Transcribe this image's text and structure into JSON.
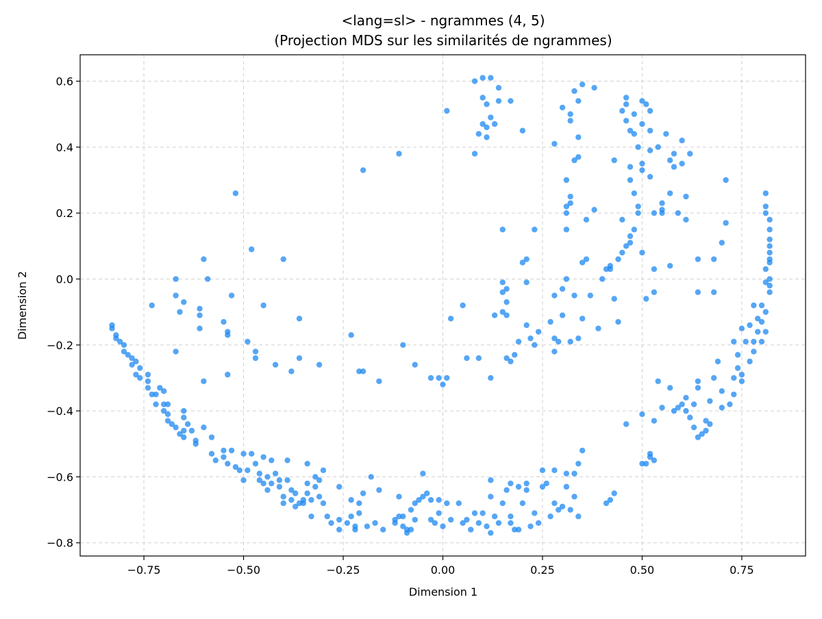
{
  "chart_data": {
    "type": "scatter",
    "title": "<lang=sl> - ngrammes (4, 5)",
    "subtitle": "(Projection MDS sur les similarités de ngrammes)",
    "xlabel": "Dimension 1",
    "ylabel": "Dimension 2",
    "xlim": [
      -0.91,
      0.91
    ],
    "ylim": [
      -0.84,
      0.68
    ],
    "xticks": [
      -0.75,
      -0.5,
      -0.25,
      0.0,
      0.25,
      0.5,
      0.75
    ],
    "xtick_labels": [
      "−0.75",
      "−0.50",
      "−0.25",
      "0.00",
      "0.25",
      "0.50",
      "0.75"
    ],
    "yticks": [
      -0.8,
      -0.6,
      -0.4,
      -0.2,
      0.0,
      0.2,
      0.4,
      0.6
    ],
    "ytick_labels": [
      "−0.8",
      "−0.6",
      "−0.4",
      "−0.2",
      "0.0",
      "0.2",
      "0.4",
      "0.6"
    ],
    "grid": true,
    "marker_color": "#1e88f0",
    "points": [
      [
        -0.83,
        -0.14
      ],
      [
        -0.83,
        -0.15
      ],
      [
        -0.82,
        -0.17
      ],
      [
        -0.82,
        -0.18
      ],
      [
        -0.81,
        -0.19
      ],
      [
        -0.8,
        -0.2
      ],
      [
        -0.8,
        -0.22
      ],
      [
        -0.79,
        -0.23
      ],
      [
        -0.78,
        -0.24
      ],
      [
        -0.78,
        -0.26
      ],
      [
        -0.77,
        -0.25
      ],
      [
        -0.76,
        -0.27
      ],
      [
        -0.77,
        -0.29
      ],
      [
        -0.76,
        -0.3
      ],
      [
        -0.74,
        -0.29
      ],
      [
        -0.74,
        -0.31
      ],
      [
        -0.74,
        -0.33
      ],
      [
        -0.73,
        -0.35
      ],
      [
        -0.72,
        -0.35
      ],
      [
        -0.72,
        -0.38
      ],
      [
        -0.71,
        -0.33
      ],
      [
        -0.7,
        -0.34
      ],
      [
        -0.7,
        -0.38
      ],
      [
        -0.7,
        -0.4
      ],
      [
        -0.69,
        -0.38
      ],
      [
        -0.69,
        -0.41
      ],
      [
        -0.69,
        -0.43
      ],
      [
        -0.68,
        -0.44
      ],
      [
        -0.67,
        -0.45
      ],
      [
        -0.66,
        -0.47
      ],
      [
        -0.65,
        -0.4
      ],
      [
        -0.65,
        -0.42
      ],
      [
        -0.65,
        -0.46
      ],
      [
        -0.65,
        -0.48
      ],
      [
        -0.64,
        -0.44
      ],
      [
        -0.63,
        -0.46
      ],
      [
        -0.62,
        -0.49
      ],
      [
        -0.62,
        -0.5
      ],
      [
        -0.6,
        -0.45
      ],
      [
        -0.58,
        -0.48
      ],
      [
        -0.58,
        -0.53
      ],
      [
        -0.57,
        -0.55
      ],
      [
        -0.55,
        -0.52
      ],
      [
        -0.55,
        -0.54
      ],
      [
        -0.54,
        -0.56
      ],
      [
        -0.53,
        -0.52
      ],
      [
        -0.52,
        -0.57
      ],
      [
        -0.51,
        -0.58
      ],
      [
        -0.5,
        -0.53
      ],
      [
        -0.5,
        -0.61
      ],
      [
        -0.49,
        -0.58
      ],
      [
        -0.48,
        -0.53
      ],
      [
        -0.47,
        -0.56
      ],
      [
        -0.46,
        -0.59
      ],
      [
        -0.46,
        -0.61
      ],
      [
        -0.45,
        -0.54
      ],
      [
        -0.45,
        -0.62
      ],
      [
        -0.44,
        -0.6
      ],
      [
        -0.44,
        -0.64
      ],
      [
        -0.43,
        -0.55
      ],
      [
        -0.43,
        -0.62
      ],
      [
        -0.42,
        -0.59
      ],
      [
        -0.41,
        -0.61
      ],
      [
        -0.41,
        -0.63
      ],
      [
        -0.4,
        -0.66
      ],
      [
        -0.4,
        -0.68
      ],
      [
        -0.39,
        -0.55
      ],
      [
        -0.39,
        -0.61
      ],
      [
        -0.38,
        -0.64
      ],
      [
        -0.38,
        -0.67
      ],
      [
        -0.37,
        -0.65
      ],
      [
        -0.37,
        -0.69
      ],
      [
        -0.36,
        -0.68
      ],
      [
        -0.35,
        -0.67
      ],
      [
        -0.35,
        -0.68
      ],
      [
        -0.34,
        -0.56
      ],
      [
        -0.34,
        -0.62
      ],
      [
        -0.34,
        -0.65
      ],
      [
        -0.33,
        -0.67
      ],
      [
        -0.33,
        -0.72
      ],
      [
        -0.32,
        -0.6
      ],
      [
        -0.32,
        -0.63
      ],
      [
        -0.31,
        -0.61
      ],
      [
        -0.31,
        -0.66
      ],
      [
        -0.3,
        -0.58
      ],
      [
        -0.3,
        -0.68
      ],
      [
        -0.29,
        -0.72
      ],
      [
        -0.28,
        -0.74
      ],
      [
        -0.26,
        -0.63
      ],
      [
        -0.26,
        -0.73
      ],
      [
        -0.26,
        -0.76
      ],
      [
        -0.24,
        -0.74
      ],
      [
        -0.23,
        -0.67
      ],
      [
        -0.23,
        -0.72
      ],
      [
        -0.22,
        -0.75
      ],
      [
        -0.22,
        -0.76
      ],
      [
        -0.21,
        -0.71
      ],
      [
        -0.21,
        -0.68
      ],
      [
        -0.2,
        -0.65
      ],
      [
        -0.19,
        -0.75
      ],
      [
        -0.18,
        -0.6
      ],
      [
        -0.17,
        -0.74
      ],
      [
        -0.16,
        -0.64
      ],
      [
        -0.15,
        -0.76
      ],
      [
        -0.12,
        -0.73
      ],
      [
        -0.12,
        -0.74
      ],
      [
        -0.11,
        -0.66
      ],
      [
        -0.11,
        -0.72
      ],
      [
        -0.1,
        -0.72
      ],
      [
        -0.1,
        -0.75
      ],
      [
        -0.09,
        -0.76
      ],
      [
        -0.09,
        -0.77
      ],
      [
        -0.08,
        -0.76
      ],
      [
        -0.08,
        -0.7
      ],
      [
        -0.07,
        -0.68
      ],
      [
        -0.07,
        -0.73
      ],
      [
        -0.06,
        -0.67
      ],
      [
        -0.05,
        -0.59
      ],
      [
        -0.05,
        -0.66
      ],
      [
        -0.04,
        -0.65
      ],
      [
        -0.03,
        -0.67
      ],
      [
        -0.03,
        -0.73
      ],
      [
        -0.02,
        -0.74
      ],
      [
        -0.01,
        -0.71
      ],
      [
        -0.01,
        -0.67
      ],
      [
        0.0,
        -0.75
      ],
      [
        0.01,
        -0.68
      ],
      [
        0.02,
        -0.73
      ],
      [
        0.04,
        -0.68
      ],
      [
        0.05,
        -0.74
      ],
      [
        0.06,
        -0.73
      ],
      [
        0.07,
        -0.76
      ],
      [
        0.08,
        -0.71
      ],
      [
        0.09,
        -0.74
      ],
      [
        0.1,
        -0.71
      ],
      [
        0.11,
        -0.75
      ],
      [
        0.12,
        -0.61
      ],
      [
        0.12,
        -0.66
      ],
      [
        0.12,
        -0.77
      ],
      [
        0.13,
        -0.72
      ],
      [
        0.14,
        -0.74
      ],
      [
        0.15,
        -0.68
      ],
      [
        0.16,
        -0.64
      ],
      [
        0.17,
        -0.62
      ],
      [
        0.17,
        -0.72
      ],
      [
        0.17,
        -0.74
      ],
      [
        0.18,
        -0.76
      ],
      [
        0.19,
        -0.63
      ],
      [
        0.19,
        -0.76
      ],
      [
        0.2,
        -0.68
      ],
      [
        0.21,
        -0.62
      ],
      [
        0.21,
        -0.64
      ],
      [
        0.22,
        -0.75
      ],
      [
        0.23,
        -0.71
      ],
      [
        0.24,
        -0.74
      ],
      [
        0.25,
        -0.63
      ],
      [
        0.25,
        -0.58
      ],
      [
        0.26,
        -0.62
      ],
      [
        0.27,
        -0.72
      ],
      [
        0.28,
        -0.68
      ],
      [
        0.28,
        -0.58
      ],
      [
        0.29,
        -0.7
      ],
      [
        0.3,
        -0.69
      ],
      [
        0.31,
        -0.59
      ],
      [
        0.31,
        -0.63
      ],
      [
        0.32,
        -0.7
      ],
      [
        0.33,
        -0.59
      ],
      [
        0.33,
        -0.66
      ],
      [
        0.34,
        -0.56
      ],
      [
        0.34,
        -0.72
      ],
      [
        0.35,
        -0.52
      ],
      [
        0.41,
        -0.68
      ],
      [
        0.42,
        -0.67
      ],
      [
        0.43,
        -0.65
      ],
      [
        0.46,
        -0.44
      ],
      [
        0.5,
        -0.41
      ],
      [
        0.5,
        -0.56
      ],
      [
        0.51,
        -0.56
      ],
      [
        0.52,
        -0.53
      ],
      [
        0.52,
        -0.54
      ],
      [
        0.53,
        -0.55
      ],
      [
        0.53,
        -0.43
      ],
      [
        0.54,
        -0.31
      ],
      [
        0.55,
        -0.39
      ],
      [
        0.57,
        -0.33
      ],
      [
        0.58,
        -0.4
      ],
      [
        0.59,
        -0.39
      ],
      [
        0.6,
        -0.38
      ],
      [
        0.61,
        -0.36
      ],
      [
        0.61,
        -0.4
      ],
      [
        0.62,
        -0.42
      ],
      [
        0.63,
        -0.38
      ],
      [
        0.63,
        -0.45
      ],
      [
        0.64,
        -0.48
      ],
      [
        0.64,
        -0.33
      ],
      [
        0.64,
        -0.31
      ],
      [
        0.65,
        -0.47
      ],
      [
        0.66,
        -0.43
      ],
      [
        0.66,
        -0.46
      ],
      [
        0.67,
        -0.37
      ],
      [
        0.67,
        -0.44
      ],
      [
        0.68,
        -0.3
      ],
      [
        0.69,
        -0.25
      ],
      [
        0.7,
        -0.34
      ],
      [
        0.7,
        -0.39
      ],
      [
        0.72,
        -0.38
      ],
      [
        0.73,
        -0.35
      ],
      [
        0.73,
        -0.3
      ],
      [
        0.73,
        -0.19
      ],
      [
        0.74,
        -0.27
      ],
      [
        0.74,
        -0.23
      ],
      [
        0.75,
        -0.31
      ],
      [
        0.75,
        -0.29
      ],
      [
        0.75,
        -0.15
      ],
      [
        0.76,
        -0.19
      ],
      [
        0.77,
        -0.14
      ],
      [
        0.77,
        -0.25
      ],
      [
        0.78,
        -0.22
      ],
      [
        0.78,
        -0.19
      ],
      [
        0.78,
        -0.08
      ],
      [
        0.79,
        -0.16
      ],
      [
        0.79,
        -0.12
      ],
      [
        0.8,
        -0.19
      ],
      [
        0.8,
        -0.08
      ],
      [
        0.8,
        -0.13
      ],
      [
        0.81,
        -0.16
      ],
      [
        0.81,
        -0.1
      ],
      [
        0.81,
        -0.01
      ],
      [
        0.82,
        -0.04
      ],
      [
        0.82,
        -0.02
      ],
      [
        0.82,
        0.0
      ],
      [
        0.82,
        0.05
      ],
      [
        0.82,
        0.08
      ],
      [
        0.82,
        0.12
      ],
      [
        0.82,
        0.15
      ],
      [
        0.82,
        0.18
      ],
      [
        0.81,
        0.2
      ],
      [
        0.81,
        0.22
      ],
      [
        0.81,
        0.26
      ],
      [
        0.82,
        0.1
      ],
      [
        0.82,
        0.06
      ],
      [
        0.81,
        0.03
      ],
      [
        -0.6,
        -0.31
      ],
      [
        -0.61,
        -0.15
      ],
      [
        -0.61,
        -0.09
      ],
      [
        -0.61,
        -0.11
      ],
      [
        -0.6,
        0.06
      ],
      [
        -0.59,
        0.0
      ],
      [
        -0.67,
        0.0
      ],
      [
        -0.65,
        -0.07
      ],
      [
        -0.66,
        -0.1
      ],
      [
        -0.67,
        -0.05
      ],
      [
        -0.67,
        -0.22
      ],
      [
        -0.73,
        -0.08
      ],
      [
        -0.55,
        -0.13
      ],
      [
        -0.54,
        -0.17
      ],
      [
        -0.54,
        -0.16
      ],
      [
        -0.54,
        -0.29
      ],
      [
        -0.53,
        -0.05
      ],
      [
        -0.52,
        0.26
      ],
      [
        -0.49,
        -0.19
      ],
      [
        -0.48,
        0.09
      ],
      [
        -0.47,
        -0.22
      ],
      [
        -0.47,
        -0.24
      ],
      [
        -0.45,
        -0.08
      ],
      [
        -0.42,
        -0.26
      ],
      [
        -0.4,
        0.06
      ],
      [
        -0.38,
        -0.28
      ],
      [
        -0.36,
        -0.24
      ],
      [
        -0.36,
        -0.12
      ],
      [
        -0.31,
        -0.26
      ],
      [
        -0.23,
        -0.17
      ],
      [
        -0.21,
        -0.28
      ],
      [
        -0.2,
        -0.28
      ],
      [
        -0.2,
        0.33
      ],
      [
        -0.16,
        -0.31
      ],
      [
        -0.11,
        0.38
      ],
      [
        -0.1,
        -0.2
      ],
      [
        -0.07,
        -0.26
      ],
      [
        -0.03,
        -0.3
      ],
      [
        -0.01,
        -0.3
      ],
      [
        0.0,
        -0.32
      ],
      [
        0.01,
        -0.3
      ],
      [
        0.01,
        0.51
      ],
      [
        0.02,
        -0.12
      ],
      [
        0.05,
        -0.08
      ],
      [
        0.06,
        -0.24
      ],
      [
        0.08,
        0.38
      ],
      [
        0.09,
        -0.24
      ],
      [
        0.08,
        0.6
      ],
      [
        0.09,
        0.44
      ],
      [
        0.1,
        0.47
      ],
      [
        0.1,
        0.55
      ],
      [
        0.1,
        0.61
      ],
      [
        0.11,
        0.53
      ],
      [
        0.11,
        0.43
      ],
      [
        0.11,
        0.46
      ],
      [
        0.12,
        -0.3
      ],
      [
        0.12,
        0.49
      ],
      [
        0.12,
        0.61
      ],
      [
        0.13,
        -0.11
      ],
      [
        0.13,
        0.47
      ],
      [
        0.14,
        0.54
      ],
      [
        0.14,
        0.58
      ],
      [
        0.15,
        -0.01
      ],
      [
        0.15,
        -0.04
      ],
      [
        0.15,
        -0.1
      ],
      [
        0.15,
        0.15
      ],
      [
        0.16,
        -0.24
      ],
      [
        0.16,
        -0.07
      ],
      [
        0.16,
        -0.11
      ],
      [
        0.16,
        -0.03
      ],
      [
        0.17,
        -0.25
      ],
      [
        0.17,
        0.54
      ],
      [
        0.18,
        -0.23
      ],
      [
        0.19,
        -0.19
      ],
      [
        0.2,
        0.05
      ],
      [
        0.2,
        0.45
      ],
      [
        0.21,
        -0.14
      ],
      [
        0.21,
        0.06
      ],
      [
        0.21,
        -0.01
      ],
      [
        0.22,
        -0.18
      ],
      [
        0.23,
        -0.2
      ],
      [
        0.23,
        0.15
      ],
      [
        0.24,
        -0.16
      ],
      [
        0.27,
        -0.13
      ],
      [
        0.28,
        -0.05
      ],
      [
        0.28,
        -0.22
      ],
      [
        0.28,
        -0.18
      ],
      [
        0.28,
        0.41
      ],
      [
        0.29,
        -0.19
      ],
      [
        0.3,
        -0.03
      ],
      [
        0.3,
        -0.11
      ],
      [
        0.3,
        0.52
      ],
      [
        0.31,
        0.3
      ],
      [
        0.31,
        0.2
      ],
      [
        0.31,
        0.22
      ],
      [
        0.31,
        0.15
      ],
      [
        0.31,
        0.0
      ],
      [
        0.32,
        -0.19
      ],
      [
        0.32,
        0.48
      ],
      [
        0.32,
        0.5
      ],
      [
        0.32,
        0.23
      ],
      [
        0.32,
        0.25
      ],
      [
        0.33,
        -0.05
      ],
      [
        0.33,
        0.57
      ],
      [
        0.33,
        0.36
      ],
      [
        0.34,
        0.37
      ],
      [
        0.34,
        0.43
      ],
      [
        0.34,
        0.54
      ],
      [
        0.34,
        -0.18
      ],
      [
        0.35,
        0.59
      ],
      [
        0.35,
        -0.12
      ],
      [
        0.35,
        0.05
      ],
      [
        0.36,
        0.06
      ],
      [
        0.36,
        0.18
      ],
      [
        0.37,
        -0.05
      ],
      [
        0.38,
        0.58
      ],
      [
        0.38,
        0.21
      ],
      [
        0.39,
        -0.15
      ],
      [
        0.4,
        0.0
      ],
      [
        0.41,
        0.03
      ],
      [
        0.42,
        0.03
      ],
      [
        0.42,
        0.04
      ],
      [
        0.43,
        -0.06
      ],
      [
        0.43,
        0.36
      ],
      [
        0.44,
        0.06
      ],
      [
        0.44,
        -0.13
      ],
      [
        0.45,
        0.08
      ],
      [
        0.45,
        0.18
      ],
      [
        0.45,
        0.51
      ],
      [
        0.46,
        0.55
      ],
      [
        0.46,
        0.53
      ],
      [
        0.46,
        0.1
      ],
      [
        0.46,
        0.48
      ],
      [
        0.47,
        0.11
      ],
      [
        0.47,
        0.45
      ],
      [
        0.47,
        0.34
      ],
      [
        0.47,
        0.3
      ],
      [
        0.47,
        0.13
      ],
      [
        0.48,
        0.15
      ],
      [
        0.48,
        0.26
      ],
      [
        0.48,
        0.44
      ],
      [
        0.48,
        0.5
      ],
      [
        0.49,
        0.4
      ],
      [
        0.49,
        0.2
      ],
      [
        0.49,
        0.22
      ],
      [
        0.5,
        0.08
      ],
      [
        0.5,
        0.33
      ],
      [
        0.5,
        0.35
      ],
      [
        0.5,
        0.54
      ],
      [
        0.5,
        0.47
      ],
      [
        0.51,
        -0.06
      ],
      [
        0.51,
        0.53
      ],
      [
        0.52,
        0.51
      ],
      [
        0.52,
        0.39
      ],
      [
        0.52,
        0.45
      ],
      [
        0.52,
        0.31
      ],
      [
        0.53,
        0.2
      ],
      [
        0.53,
        0.03
      ],
      [
        0.53,
        -0.04
      ],
      [
        0.54,
        0.4
      ],
      [
        0.55,
        0.2
      ],
      [
        0.55,
        0.23
      ],
      [
        0.55,
        0.21
      ],
      [
        0.56,
        0.44
      ],
      [
        0.57,
        0.36
      ],
      [
        0.57,
        0.26
      ],
      [
        0.57,
        0.04
      ],
      [
        0.58,
        0.34
      ],
      [
        0.58,
        0.38
      ],
      [
        0.59,
        0.2
      ],
      [
        0.6,
        0.42
      ],
      [
        0.6,
        0.35
      ],
      [
        0.61,
        0.18
      ],
      [
        0.61,
        0.25
      ],
      [
        0.62,
        0.38
      ],
      [
        0.64,
        -0.04
      ],
      [
        0.64,
        0.06
      ],
      [
        0.68,
        -0.04
      ],
      [
        0.68,
        0.06
      ],
      [
        0.7,
        0.11
      ],
      [
        0.71,
        0.17
      ],
      [
        0.71,
        0.3
      ]
    ]
  }
}
